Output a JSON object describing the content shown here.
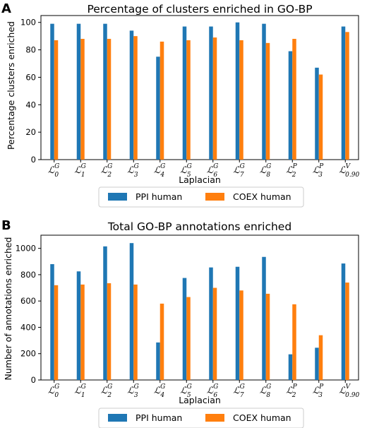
{
  "colors": {
    "ppi": "#1f77b4",
    "coex": "#ff7f0e"
  },
  "chart_data": [
    {
      "type": "bar",
      "panel": "A",
      "title": "Percentage of clusters enriched in GO-BP",
      "xlabel": "Laplacian",
      "ylabel": "Percentage clusters enriched",
      "ylim": [
        0,
        105
      ],
      "yticks": [
        0,
        20,
        40,
        60,
        80,
        100
      ],
      "grid": false,
      "legend_position": "below-center",
      "categories": [
        {
          "main": "ℒ",
          "sup": "G",
          "sub": "0"
        },
        {
          "main": "ℒ",
          "sup": "G",
          "sub": "1"
        },
        {
          "main": "ℒ",
          "sup": "G",
          "sub": "2"
        },
        {
          "main": "ℒ",
          "sup": "G",
          "sub": "3"
        },
        {
          "main": "ℒ",
          "sup": "G",
          "sub": "4"
        },
        {
          "main": "ℒ",
          "sup": "G",
          "sub": "5"
        },
        {
          "main": "ℒ",
          "sup": "G",
          "sub": "6"
        },
        {
          "main": "ℒ",
          "sup": "G",
          "sub": "7"
        },
        {
          "main": "ℒ",
          "sup": "G",
          "sub": "8"
        },
        {
          "main": "ℒ",
          "sup": "P",
          "sub": "2"
        },
        {
          "main": "ℒ",
          "sup": "P",
          "sub": "3"
        },
        {
          "main": "ℒ",
          "sup": "V",
          "sub": "0.90"
        }
      ],
      "series": [
        {
          "name": "PPI human",
          "values": [
            99,
            99,
            99,
            94,
            75,
            97,
            97,
            100,
            99,
            79,
            67,
            97
          ]
        },
        {
          "name": "COEX human",
          "values": [
            87,
            88,
            88,
            90,
            86,
            87,
            89,
            87,
            85,
            88,
            62,
            93
          ]
        }
      ]
    },
    {
      "type": "bar",
      "panel": "B",
      "title": "Total GO-BP annotations enriched",
      "xlabel": "Laplacian",
      "ylabel": "Number of annotations enriched",
      "ylim": [
        0,
        1100
      ],
      "yticks": [
        0,
        200,
        400,
        600,
        800,
        1000
      ],
      "grid": false,
      "legend_position": "below-center",
      "categories": [
        {
          "main": "ℒ",
          "sup": "G",
          "sub": "0"
        },
        {
          "main": "ℒ",
          "sup": "G",
          "sub": "1"
        },
        {
          "main": "ℒ",
          "sup": "G",
          "sub": "2"
        },
        {
          "main": "ℒ",
          "sup": "G",
          "sub": "3"
        },
        {
          "main": "ℒ",
          "sup": "G",
          "sub": "4"
        },
        {
          "main": "ℒ",
          "sup": "G",
          "sub": "5"
        },
        {
          "main": "ℒ",
          "sup": "G",
          "sub": "6"
        },
        {
          "main": "ℒ",
          "sup": "G",
          "sub": "7"
        },
        {
          "main": "ℒ",
          "sup": "G",
          "sub": "8"
        },
        {
          "main": "ℒ",
          "sup": "P",
          "sub": "2"
        },
        {
          "main": "ℒ",
          "sup": "P",
          "sub": "3"
        },
        {
          "main": "ℒ",
          "sup": "V",
          "sub": "0.90"
        }
      ],
      "series": [
        {
          "name": "PPI human",
          "values": [
            880,
            825,
            1015,
            1040,
            285,
            775,
            855,
            860,
            935,
            195,
            245,
            885
          ]
        },
        {
          "name": "COEX human",
          "values": [
            720,
            725,
            735,
            725,
            580,
            630,
            700,
            680,
            655,
            575,
            340,
            740
          ]
        }
      ]
    }
  ]
}
